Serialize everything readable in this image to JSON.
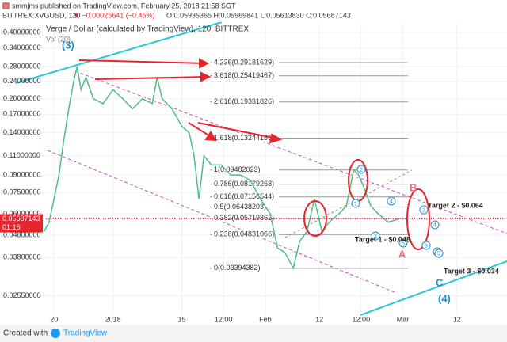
{
  "header": {
    "publisher": "smmjms published on TradingView.com, February 25, 2018 21:58 SGT",
    "symbol": "BITTREX:XVGUSD, 120",
    "change": "▼ −0.00025641 (−0.45%)",
    "ohlc": "O:0.05935365 H:0.05969841 L:0.05613830 C:0.05687143"
  },
  "chart_data": {
    "type": "line",
    "title": "Verge / Dollar (calculated by TradingView), 120, BITTREX",
    "subtitle": "Vol (20)",
    "x": [
      -2,
      -1,
      0,
      1,
      2,
      3,
      4,
      4.7,
      5.5,
      6.5,
      8,
      10,
      12,
      14,
      16,
      18,
      20,
      21,
      22,
      24,
      26,
      27.5,
      28.5,
      29.5,
      30.5,
      32,
      34,
      36,
      38,
      40,
      42,
      44,
      45.5,
      47,
      48.7,
      50,
      51.5,
      53,
      54.5,
      56,
      58,
      59.5,
      61,
      62,
      63,
      64.5,
      66,
      68,
      70.3
    ],
    "values": [
      0.05,
      0.055,
      0.07,
      0.09,
      0.13,
      0.18,
      0.24,
      0.28,
      0.22,
      0.25,
      0.2,
      0.19,
      0.22,
      0.2,
      0.18,
      0.2,
      0.19,
      0.25,
      0.2,
      0.18,
      0.15,
      0.14,
      0.11,
      0.07,
      0.11,
      0.1,
      0.1,
      0.09,
      0.09,
      0.085,
      0.07,
      0.06,
      0.042,
      0.04,
      0.034,
      0.045,
      0.05,
      0.07,
      0.05,
      0.055,
      0.06,
      0.065,
      0.095,
      0.09,
      0.08,
      0.065,
      0.06,
      0.055,
      0.05687143
    ],
    "color": "#53b987",
    "log_scale": true,
    "grid": true,
    "xlim": [
      -11,
      92.2
    ],
    "xticks": [
      {
        "value": 0,
        "label": "20"
      },
      {
        "value": 12,
        "label": "2018"
      },
      {
        "value": 26,
        "label": "15"
      },
      {
        "value": 34.5,
        "label": "12:00"
      },
      {
        "value": 43,
        "label": "Feb"
      },
      {
        "value": 54,
        "label": "12"
      },
      {
        "value": 62.5,
        "label": "12:00"
      },
      {
        "value": 71,
        "label": "Mar"
      },
      {
        "value": 82,
        "label": "12"
      }
    ],
    "ylim": [
      0.0208,
      0.438
    ],
    "yticks": [
      {
        "value": 0.4,
        "label": "0.40000000"
      },
      {
        "value": 0.34,
        "label": "0.34000000"
      },
      {
        "value": 0.28,
        "label": "0.28000000"
      },
      {
        "value": 0.24,
        "label": "0.24000000"
      },
      {
        "value": 0.2,
        "label": "0.20000000"
      },
      {
        "value": 0.17,
        "label": "0.17000000"
      },
      {
        "value": 0.14,
        "label": "0.14000000"
      },
      {
        "value": 0.11,
        "label": "0.11000000"
      },
      {
        "value": 0.09,
        "label": "0.09000000"
      },
      {
        "value": 0.075,
        "label": "0.07500000"
      },
      {
        "value": 0.06,
        "label": "0.06000000"
      },
      {
        "value": 0.048,
        "label": "0.04800000"
      },
      {
        "value": 0.038,
        "label": "0.03800000"
      },
      {
        "value": 0.0255,
        "label": "0.02550000"
      }
    ],
    "last_price": {
      "value": 0.05687143,
      "label": "0.05687143"
    },
    "countdown": "01:16",
    "fib_levels": [
      {
        "value": 0.29181629,
        "label": "4.236(0.29181629)"
      },
      {
        "value": 0.25419467,
        "label": "3.618(0.25419467)"
      },
      {
        "value": 0.19331826,
        "label": "2.618(0.19331826)"
      },
      {
        "value": 0.13244185,
        "label": "1.618(0.13244185)"
      },
      {
        "value": 0.09482023,
        "label": "1(0.09482023)"
      },
      {
        "value": 0.08179268,
        "label": "0.786(0.08179268)"
      },
      {
        "value": 0.07156544,
        "label": "0.618(0.07156544)"
      },
      {
        "value": 0.06438203,
        "label": "0.5(0.06438203)"
      },
      {
        "value": 0.05719862,
        "label": "0.382(0.05719862)"
      },
      {
        "value": 0.04831066,
        "label": "0.236(0.04831066)"
      },
      {
        "value": 0.03394382,
        "label": "0(0.03394382)"
      }
    ],
    "annotations": {
      "wave3": "(3)",
      "wave4": "(4)",
      "a": "A",
      "b": "B",
      "c": "C",
      "target1": "Target 1 - $0.048",
      "target2": "Target 2 - $0.064",
      "target3": "Target 3 - $0.034"
    },
    "wave_marks": [
      "1",
      "2",
      "3",
      "4",
      "5",
      "1",
      "2",
      "3",
      "4",
      "5"
    ]
  },
  "footer": {
    "created": "Created with",
    "brand": "TradingView"
  }
}
